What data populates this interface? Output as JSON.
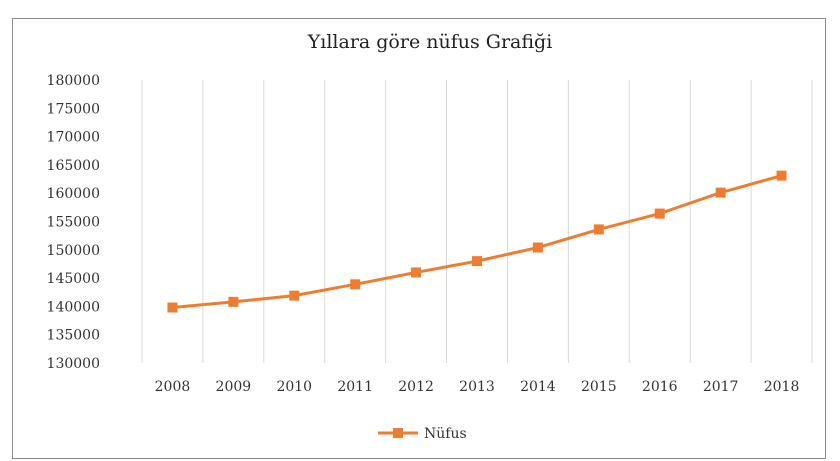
{
  "chart_data": {
    "type": "line",
    "title": "Yıllara göre nüfus Grafiği",
    "categories": [
      "2008",
      "2009",
      "2010",
      "2011",
      "2012",
      "2013",
      "2014",
      "2015",
      "2016",
      "2017",
      "2018"
    ],
    "series": [
      {
        "name": "Nüfus",
        "color": "#ED7D31",
        "values": [
          139800,
          140800,
          141900,
          143900,
          146000,
          148000,
          150400,
          153600,
          156400,
          160100,
          163100
        ]
      }
    ],
    "y_ticks": [
      "180000",
      "175000",
      "170000",
      "165000",
      "160000",
      "155000",
      "150000",
      "145000",
      "140000",
      "135000",
      "130000"
    ],
    "ylim": [
      130000,
      180000
    ],
    "grid": "vertical",
    "legend": "bottom"
  }
}
